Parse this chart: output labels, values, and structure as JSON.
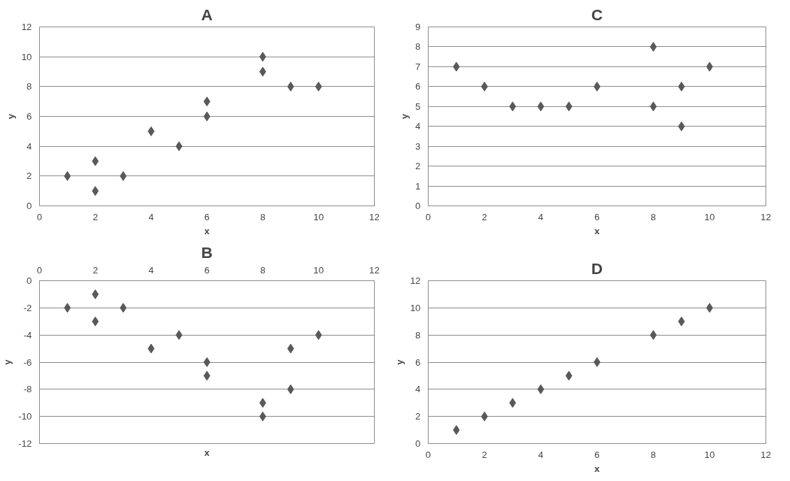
{
  "chart_data": [
    {
      "type": "scatter",
      "title": "A",
      "xlabel": "x",
      "ylabel": "y",
      "xlim": [
        0,
        12
      ],
      "xticks": [
        0,
        2,
        4,
        6,
        8,
        10,
        12
      ],
      "ylim": [
        0,
        12
      ],
      "yticks": [
        0,
        2,
        4,
        6,
        8,
        10,
        12
      ],
      "grid": "y",
      "marker": "diamond",
      "series": [
        {
          "color": "#595959",
          "x": [
            1,
            2,
            2,
            3,
            4,
            5,
            6,
            6,
            8,
            8,
            9,
            10
          ],
          "values": [
            2,
            3,
            1,
            2,
            5,
            4,
            7,
            6,
            10,
            9,
            8,
            8
          ]
        }
      ]
    },
    {
      "type": "scatter",
      "title": "C",
      "xlabel": "x",
      "ylabel": "y",
      "xlim": [
        0,
        12
      ],
      "xticks": [
        0,
        2,
        4,
        6,
        8,
        10,
        12
      ],
      "ylim": [
        0,
        9
      ],
      "yticks": [
        0,
        1,
        2,
        3,
        4,
        5,
        6,
        7,
        8,
        9
      ],
      "grid": "y",
      "marker": "diamond",
      "series": [
        {
          "color": "#595959",
          "x": [
            1,
            2,
            3,
            4,
            5,
            6,
            8,
            8,
            9,
            9,
            10
          ],
          "values": [
            7,
            6,
            5,
            5,
            5,
            6,
            8,
            5,
            6,
            4,
            7
          ]
        }
      ]
    },
    {
      "type": "scatter",
      "title": "B",
      "xlabel": "x",
      "ylabel": "y",
      "xlim": [
        0,
        12
      ],
      "xticks": [
        0,
        2,
        4,
        6,
        8,
        10,
        12
      ],
      "ylim": [
        -12,
        0
      ],
      "yticks": [
        -12,
        -10,
        -8,
        -6,
        -4,
        -2,
        0
      ],
      "grid": "y",
      "marker": "diamond",
      "series": [
        {
          "color": "#595959",
          "x": [
            1,
            2,
            2,
            3,
            4,
            5,
            6,
            6,
            8,
            8,
            9,
            9,
            10
          ],
          "values": [
            -2,
            -1,
            -3,
            -2,
            -5,
            -4,
            -6,
            -7,
            -9,
            -10,
            -5,
            -8,
            -4
          ]
        }
      ]
    },
    {
      "type": "scatter",
      "title": "D",
      "xlabel": "x",
      "ylabel": "y",
      "xlim": [
        0,
        12
      ],
      "xticks": [
        0,
        2,
        4,
        6,
        8,
        10,
        12
      ],
      "ylim": [
        0,
        12
      ],
      "yticks": [
        0,
        2,
        4,
        6,
        8,
        10,
        12
      ],
      "grid": "y",
      "marker": "diamond",
      "series": [
        {
          "color": "#595959",
          "x": [
            1,
            2,
            3,
            4,
            5,
            6,
            8,
            9,
            10
          ],
          "values": [
            1,
            2,
            3,
            4,
            5,
            6,
            8,
            9,
            10
          ]
        }
      ]
    }
  ]
}
